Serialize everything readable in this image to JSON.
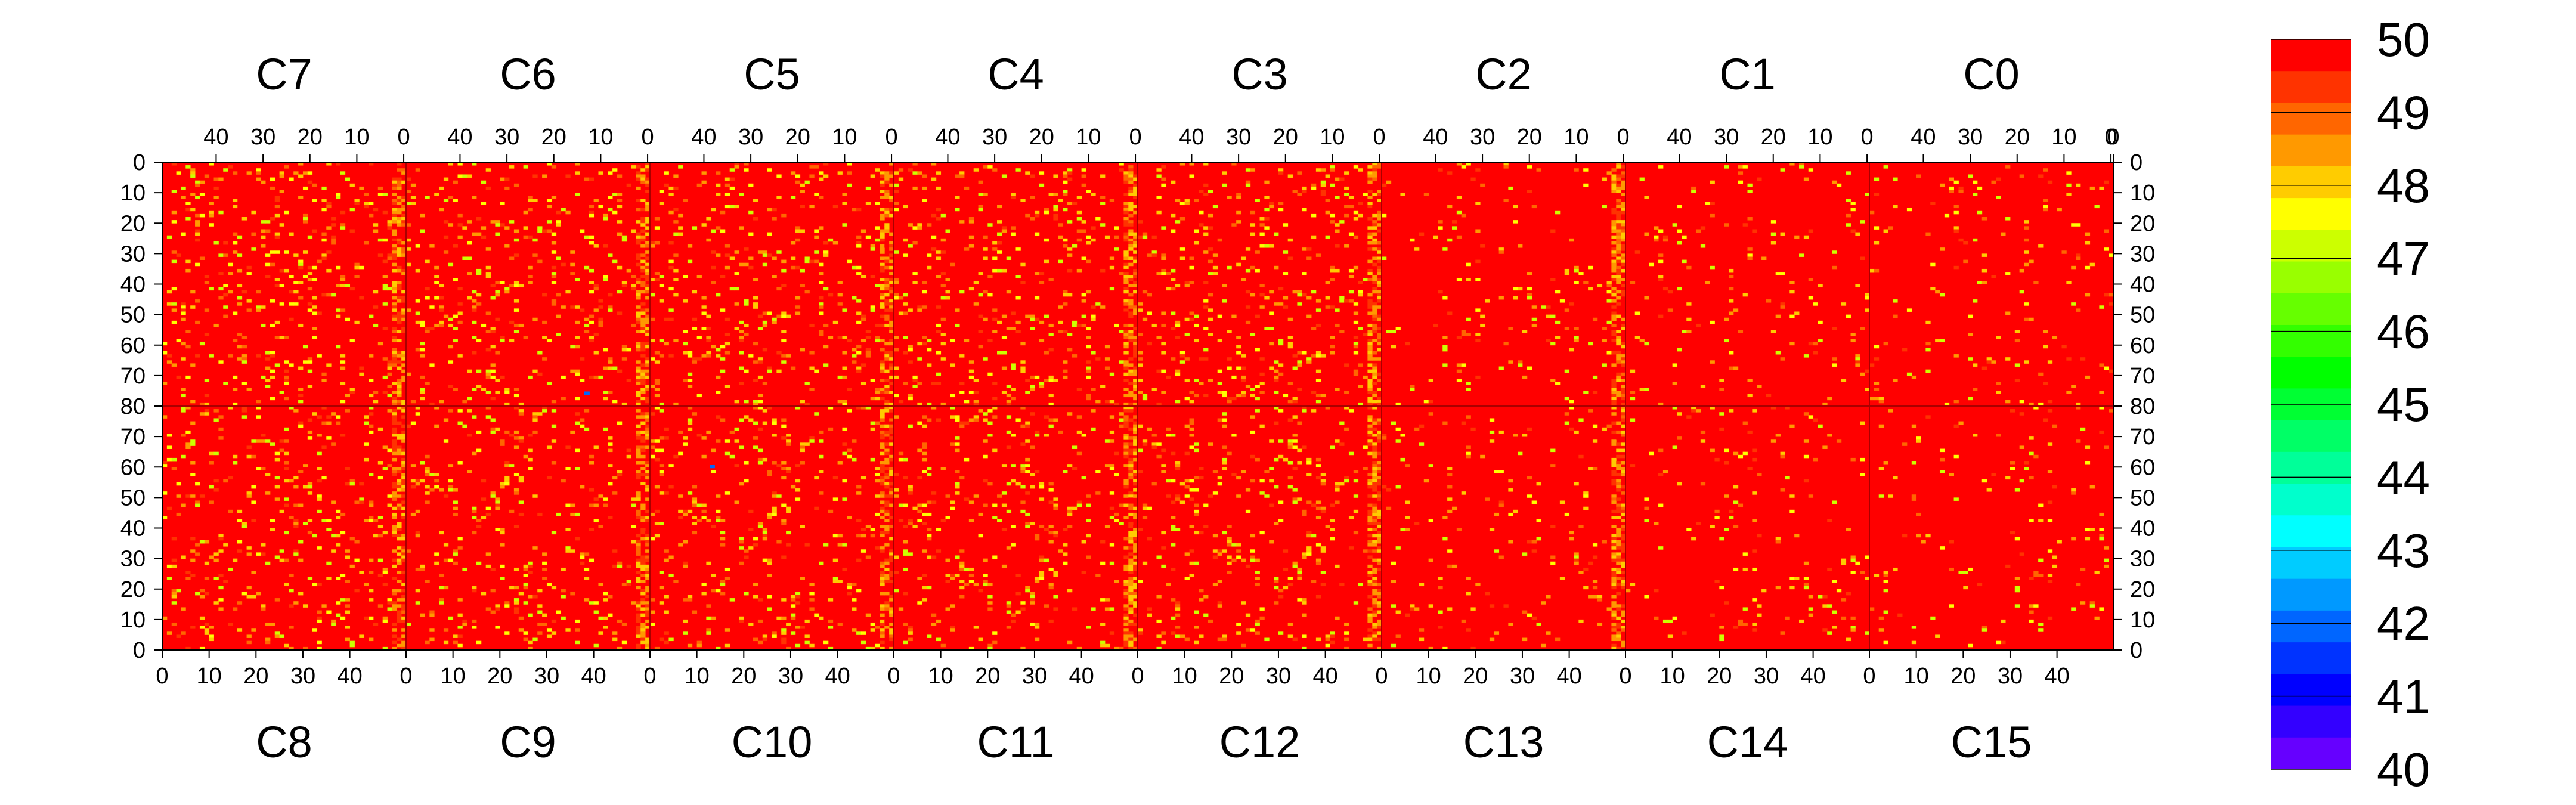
{
  "chart_data": {
    "type": "heatmap",
    "title": "",
    "xlabel": "",
    "ylabel": "",
    "zlim": [
      40,
      50
    ],
    "colorbar": {
      "ticks": [
        50,
        49,
        48,
        47,
        46,
        45,
        44,
        43,
        42,
        41,
        40
      ],
      "colors": [
        "#ff0000",
        "#ff3300",
        "#ff6600",
        "#ff9900",
        "#ffcc00",
        "#ffff00",
        "#ccff00",
        "#99ff00",
        "#66ff00",
        "#33ff00",
        "#00ff00",
        "#00ff33",
        "#00ff66",
        "#00ff99",
        "#00ffcc",
        "#00ffff",
        "#00ccff",
        "#0099ff",
        "#0066ff",
        "#0033ff",
        "#0000ff",
        "#3300ff",
        "#6600ff"
      ]
    },
    "top_chips": [
      "C7",
      "C6",
      "C5",
      "C4",
      "C3",
      "C2",
      "C1",
      "C0"
    ],
    "bottom_chips": [
      "C8",
      "C9",
      "C10",
      "C11",
      "C12",
      "C13",
      "C14",
      "C15"
    ],
    "top_col_ticks": [
      "40",
      "30",
      "20",
      "10",
      "0"
    ],
    "bottom_col_ticks": [
      "0",
      "10",
      "20",
      "30",
      "40"
    ],
    "top_final_tick": "0",
    "left_row_ticks": [
      "0",
      "10",
      "20",
      "30",
      "40",
      "50",
      "60",
      "70",
      "80",
      "70",
      "60",
      "50",
      "40",
      "30",
      "20",
      "10",
      "0"
    ],
    "right_row_ticks": [
      "0",
      "10",
      "20",
      "30",
      "40",
      "50",
      "60",
      "70",
      "80",
      "70",
      "60",
      "50",
      "40",
      "30",
      "20",
      "10",
      "0"
    ],
    "columns_per_chip": 52,
    "rows_per_half": 80,
    "typical_value": 50,
    "notes_values": {
      "background": 50,
      "speckle_range": [
        47,
        49.5
      ],
      "chip_edge_column_values": [
        48,
        49
      ],
      "rare_low_pixels": 42
    }
  }
}
